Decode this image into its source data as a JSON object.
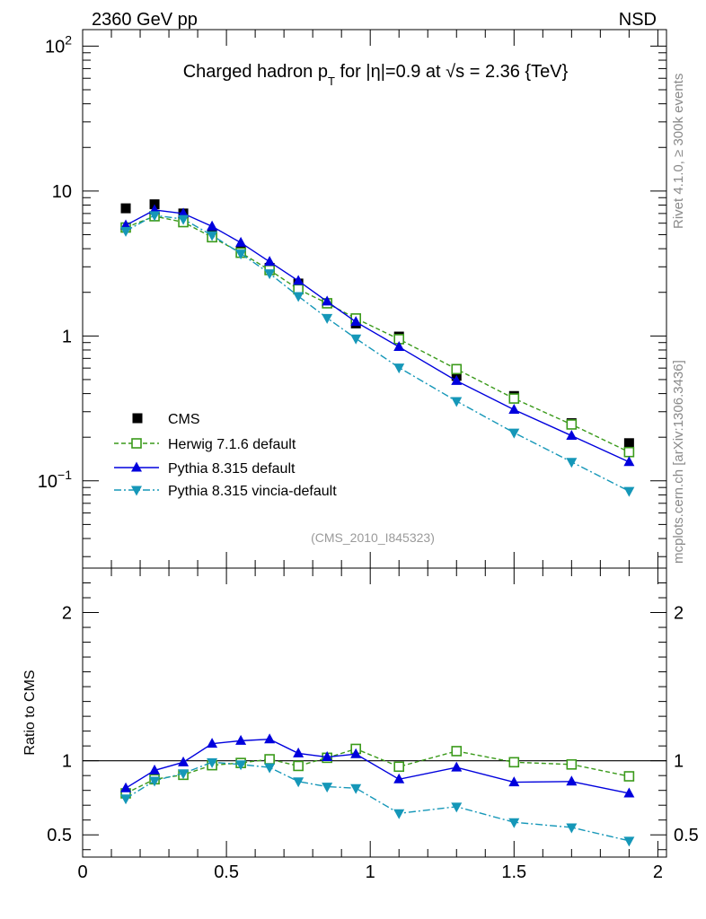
{
  "header": {
    "left_label": "2360 GeV pp",
    "right_label": "NSD"
  },
  "side_labels": {
    "rivet": "Rivet 4.1.0, ≥ 300k events",
    "mcplots": "mcplots.cern.ch [arXiv:1306.3436]"
  },
  "colors": {
    "cms": "#000000",
    "herwig": "#3a9a1a",
    "pythia": "#0000dd",
    "vincia": "#1597b8"
  },
  "chart_data": [
    {
      "type": "line",
      "title": "Charged hadron p_T for |η|=0.9 at √s = 2.36 {TeV}",
      "title_parts": {
        "main": "Charged hadron p",
        "sub": "T",
        "rest": " for |η|=0.9 at ",
        "sqrt": "√s",
        "tail": " = 2.36 {TeV}"
      },
      "watermark": "(CMS_2010_I845323)",
      "xlabel": "",
      "ylabel": "",
      "xlim": [
        0,
        2.03
      ],
      "ylim": [
        0.025,
        130
      ],
      "yscale": "log",
      "y_ticks": [
        {
          "value": 0.1,
          "base": "10",
          "exp": "−1"
        },
        {
          "value": 1,
          "base": "1",
          "exp": ""
        },
        {
          "value": 10,
          "base": "10",
          "exp": ""
        },
        {
          "value": 100,
          "base": "10",
          "exp": "2"
        }
      ],
      "x": [
        0.15,
        0.25,
        0.35,
        0.45,
        0.55,
        0.65,
        0.75,
        0.85,
        0.95,
        1.1,
        1.3,
        1.5,
        1.7,
        1.9
      ],
      "series": [
        {
          "name": "CMS",
          "key": "cms",
          "values": [
            7.6,
            8.1,
            7.0,
            5.0,
            3.85,
            2.95,
            2.3,
            1.68,
            1.22,
            0.99,
            0.53,
            0.385,
            0.25,
            0.182
          ]
        },
        {
          "name": "Herwig 7.1.6 default",
          "key": "herwig",
          "values": [
            5.6,
            6.7,
            6.1,
            4.8,
            3.75,
            2.85,
            2.1,
            1.68,
            1.32,
            0.95,
            0.59,
            0.37,
            0.245,
            0.158
          ]
        },
        {
          "name": "Pythia 8.315 default",
          "key": "pythia",
          "values": [
            5.8,
            7.4,
            7.0,
            5.7,
            4.4,
            3.25,
            2.4,
            1.73,
            1.25,
            0.84,
            0.49,
            0.31,
            0.205,
            0.135
          ]
        },
        {
          "name": "Pythia 8.315 vincia-default",
          "key": "vincia",
          "values": [
            5.3,
            6.8,
            6.4,
            4.95,
            3.7,
            2.7,
            1.88,
            1.33,
            0.96,
            0.605,
            0.355,
            0.215,
            0.135,
            0.085
          ]
        }
      ],
      "legend_position": "lower-left"
    },
    {
      "type": "line",
      "ylabel": "Ratio to CMS",
      "xlim": [
        0,
        2.03
      ],
      "ylim": [
        0.35,
        2.3
      ],
      "x_ticks": [
        "0",
        "0.5",
        "1",
        "1.5",
        "2"
      ],
      "y_ticks": [
        "0.5",
        "1",
        "2"
      ],
      "x": [
        0.15,
        0.25,
        0.35,
        0.45,
        0.55,
        0.65,
        0.75,
        0.85,
        0.95,
        1.1,
        1.3,
        1.5,
        1.7,
        1.9
      ],
      "series": [
        {
          "name": "Herwig 7.1.6 default",
          "key": "herwig",
          "values": [
            0.78,
            0.875,
            0.905,
            0.97,
            0.985,
            1.01,
            0.965,
            1.02,
            1.08,
            0.96,
            1.065,
            0.99,
            0.975,
            0.895
          ]
        },
        {
          "name": "Pythia 8.315 default",
          "key": "pythia",
          "values": [
            0.815,
            0.935,
            0.99,
            1.115,
            1.135,
            1.145,
            1.05,
            1.025,
            1.045,
            0.875,
            0.955,
            0.855,
            0.86,
            0.78
          ]
        },
        {
          "name": "Pythia 8.315 vincia-default",
          "key": "vincia",
          "values": [
            0.745,
            0.865,
            0.915,
            0.99,
            0.975,
            0.955,
            0.86,
            0.825,
            0.815,
            0.645,
            0.69,
            0.585,
            0.55,
            0.46
          ]
        }
      ],
      "reference_value": 1
    }
  ]
}
